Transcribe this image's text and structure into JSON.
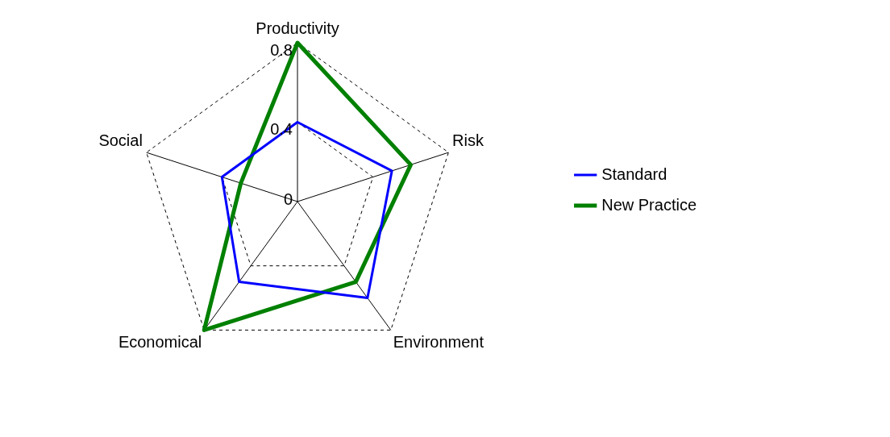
{
  "chart_data": {
    "type": "radar",
    "categories": [
      "Productivity",
      "Risk",
      "Environment",
      "Economical",
      "Social"
    ],
    "series": [
      {
        "name": "Standard",
        "color": "#0000ff",
        "values": [
          0.4,
          0.5,
          0.6,
          0.5,
          0.4
        ]
      },
      {
        "name": "New Practice",
        "color": "#008000",
        "values": [
          0.8,
          0.6,
          0.5,
          0.8,
          0.3
        ]
      }
    ],
    "ylim": [
      0,
      0.8
    ],
    "yticks": [
      0,
      0.4,
      0.8
    ],
    "grid": true,
    "legend": "right",
    "marker": "none",
    "line_style": "solid"
  }
}
